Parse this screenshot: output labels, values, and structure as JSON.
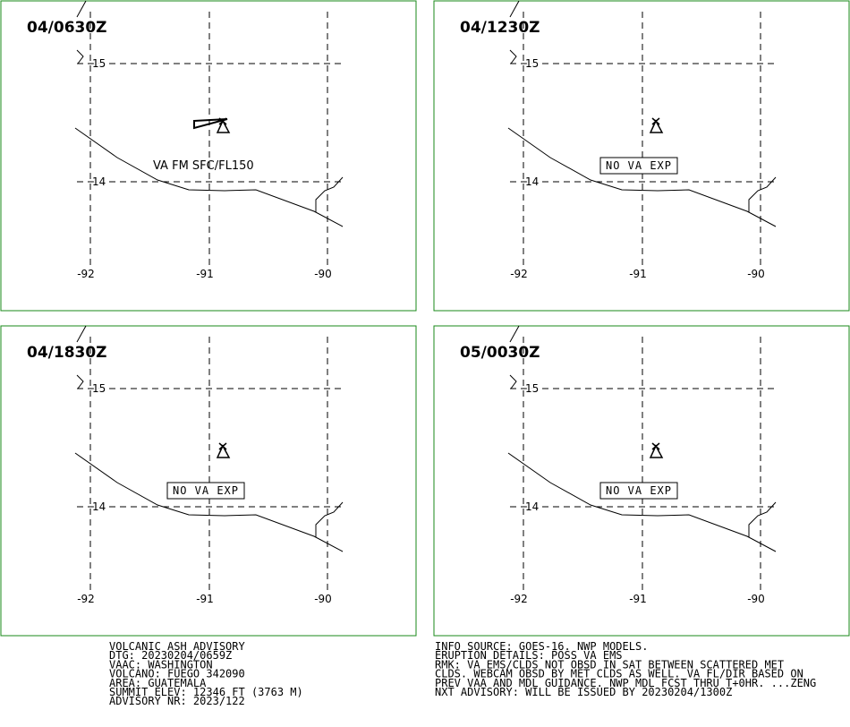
{
  "panels": [
    {
      "time": "04/0630Z",
      "label": "VA FM SFC/FL150",
      "ash": true
    },
    {
      "time": "04/1230Z",
      "label": "NO VA EXP",
      "ash": false
    },
    {
      "time": "04/1830Z",
      "label": "NO VA EXP",
      "ash": false
    },
    {
      "time": "05/0030Z",
      "label": "NO VA EXP",
      "ash": false
    }
  ],
  "grid": {
    "lat_labels": [
      "15",
      "14"
    ],
    "lon_labels": [
      "-92",
      "-91",
      "-90"
    ]
  },
  "advisory": {
    "left": [
      "VOLCANIC ASH ADVISORY",
      "DTG: 20230204/0659Z",
      "VAAC: WASHINGTON",
      "VOLCANO: FUEGO 342090",
      "AREA: GUATEMALA",
      "SUMMIT ELEV: 12346 FT (3763 M)",
      "ADVISORY NR: 2023/122"
    ],
    "right": [
      "INFO SOURCE: GOES-16. NWP MODELS.",
      "ERUPTION DETAILS: POSS VA EMS",
      "RMK: VA EMS/CLDS NOT OBSD IN SAT BETWEEN SCATTERED MET",
      "CLDS. WEBCAM OBSD BY MET CLDS AS WELL. VA FL/DIR BASED ON",
      "PREV VAA AND MDL GUIDANCE. NWP MDL FCST THRU T+0HR. ...ZENG",
      "NXT ADVISORY: WILL BE ISSUED BY 20230204/1300Z"
    ]
  }
}
